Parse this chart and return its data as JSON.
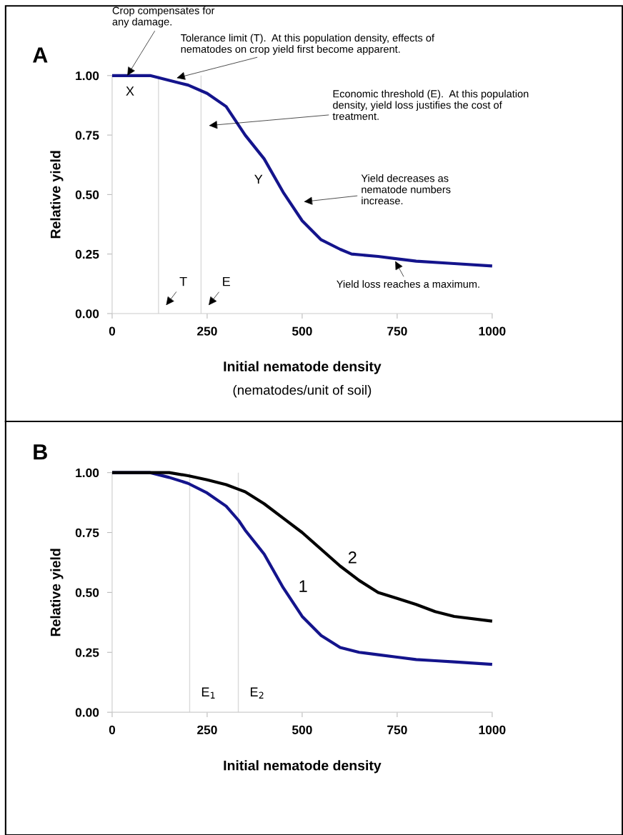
{
  "chart_data": [
    {
      "type": "line",
      "title": "A",
      "xlabel": "Initial nematode density\n(nematodes/unit of soil)",
      "ylabel": "Relative yield",
      "x": [
        0,
        50,
        100,
        150,
        200,
        250,
        300,
        350,
        400,
        450,
        500,
        550,
        600,
        630,
        700,
        750,
        800,
        900,
        1000
      ],
      "series": [
        {
          "color": "#14148c",
          "values": [
            1.0,
            1.0,
            1.0,
            0.98,
            0.96,
            0.925,
            0.87,
            0.75,
            0.65,
            0.51,
            0.39,
            0.31,
            0.27,
            0.25,
            0.24,
            0.23,
            0.22,
            0.21,
            0.2
          ]
        }
      ],
      "xlim": [
        0,
        1000
      ],
      "ylim": [
        0,
        1
      ],
      "xticks": [
        0,
        250,
        500,
        750,
        1000
      ],
      "yticks": [
        {
          "value": 0,
          "label": "0.00"
        },
        {
          "value": 0.25,
          "label": "0.25"
        },
        {
          "value": 0.5,
          "label": "0.50"
        },
        {
          "value": 0.75,
          "label": "0.75"
        },
        {
          "value": 1,
          "label": "1.00"
        }
      ],
      "ref_lines": [
        {
          "axis": "x",
          "value": 122,
          "label": "T",
          "color": "#d9d9d9"
        },
        {
          "axis": "x",
          "value": 234,
          "label": "E",
          "color": "#d9d9d9"
        }
      ],
      "annotations": [
        {
          "text": "Crop compensates for\nany damage.",
          "x": 40,
          "y": 1.0
        },
        {
          "text": "Tolerance limit (T).  At this population density, effects of\nnematodes on crop yield first become apparent.",
          "x": 170,
          "y": 0.99
        },
        "Economic threshold (E).  At this population\ndensity, yield loss justifies the cost of\ntreatment.",
        "Yield decreases as\nnematode numbers\nincrease.",
        {
          "text": "Yield loss reaches a maximum.",
          "x": 745,
          "y": 0.22
        },
        "X",
        "Y"
      ],
      "grid": false,
      "legend": false
    },
    {
      "type": "line",
      "title": "B",
      "xlabel": "Initial nematode density",
      "ylabel": "Relative yield",
      "x": [
        0,
        50,
        100,
        150,
        200,
        250,
        300,
        333,
        350,
        400,
        450,
        500,
        550,
        600,
        650,
        700,
        750,
        800,
        850,
        900,
        1000
      ],
      "series": [
        {
          "name": "1",
          "color": "#14148c",
          "values": [
            1.0,
            1.0,
            1.0,
            0.98,
            0.955,
            0.915,
            0.86,
            0.8,
            0.76,
            0.66,
            0.52,
            0.4,
            0.32,
            0.27,
            0.25,
            0.24,
            0.23,
            0.22,
            0.215,
            0.21,
            0.2
          ]
        },
        {
          "name": "2",
          "color": "#000000",
          "values": [
            1.0,
            1.0,
            1.0,
            1.0,
            0.987,
            0.97,
            0.95,
            0.93,
            0.92,
            0.87,
            0.81,
            0.75,
            0.68,
            0.61,
            0.55,
            0.5,
            0.475,
            0.45,
            0.42,
            0.4,
            0.38
          ]
        }
      ],
      "xlim": [
        0,
        1000
      ],
      "ylim": [
        0,
        1
      ],
      "xticks": [
        0,
        250,
        500,
        750,
        1000
      ],
      "yticks": [
        {
          "value": 0,
          "label": "0.00"
        },
        {
          "value": 0.25,
          "label": "0.25"
        },
        {
          "value": 0.5,
          "label": "0.50"
        },
        {
          "value": 0.75,
          "label": "0.75"
        },
        {
          "value": 1,
          "label": "1.00"
        }
      ],
      "ref_lines": [
        {
          "axis": "x",
          "value": 204,
          "label": "E$_{1}$",
          "color": "#d9d9d9"
        },
        {
          "axis": "x",
          "value": 332,
          "label": "E$_{2}$",
          "color": "#d9d9d9"
        }
      ],
      "grid": false,
      "legend": false
    }
  ]
}
